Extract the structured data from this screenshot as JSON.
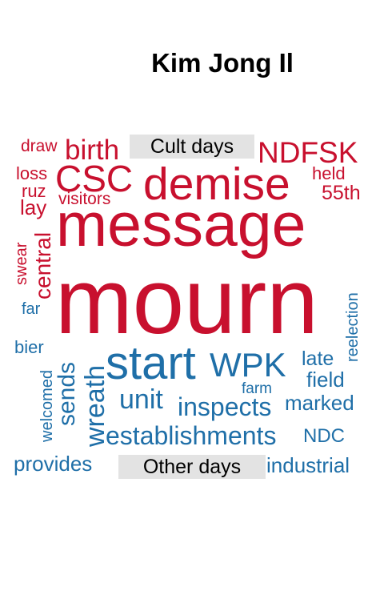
{
  "title": "Kim Jong Il",
  "groups": {
    "cult_label": "Cult days",
    "other_label": "Other days"
  },
  "colors": {
    "cult": "#c8102e",
    "other": "#1f6fa8",
    "label_bg": "#e3e3e3"
  },
  "words": {
    "cult": {
      "draw": "draw",
      "birth": "birth",
      "ndfsk": "NDFSK",
      "loss": "loss",
      "csc": "CSC",
      "demise": "demise",
      "held": "held",
      "ruz": "ruz",
      "visitors": "visitors",
      "55th": "55th",
      "lay": "lay",
      "message": "message",
      "swear": "swear",
      "central": "central",
      "mourn": "mourn"
    },
    "other": {
      "far": "far",
      "reelection": "reelection",
      "bier": "bier",
      "start": "start",
      "wpk": "WPK",
      "late": "late",
      "welcomed": "welcomed",
      "sends": "sends",
      "wreath": "wreath",
      "field": "field",
      "farm": "farm",
      "unit": "unit",
      "inspects": "inspects",
      "marked": "marked",
      "establishments": "establishments",
      "ndc": "NDC",
      "provides": "provides",
      "industrial": "industrial"
    }
  }
}
